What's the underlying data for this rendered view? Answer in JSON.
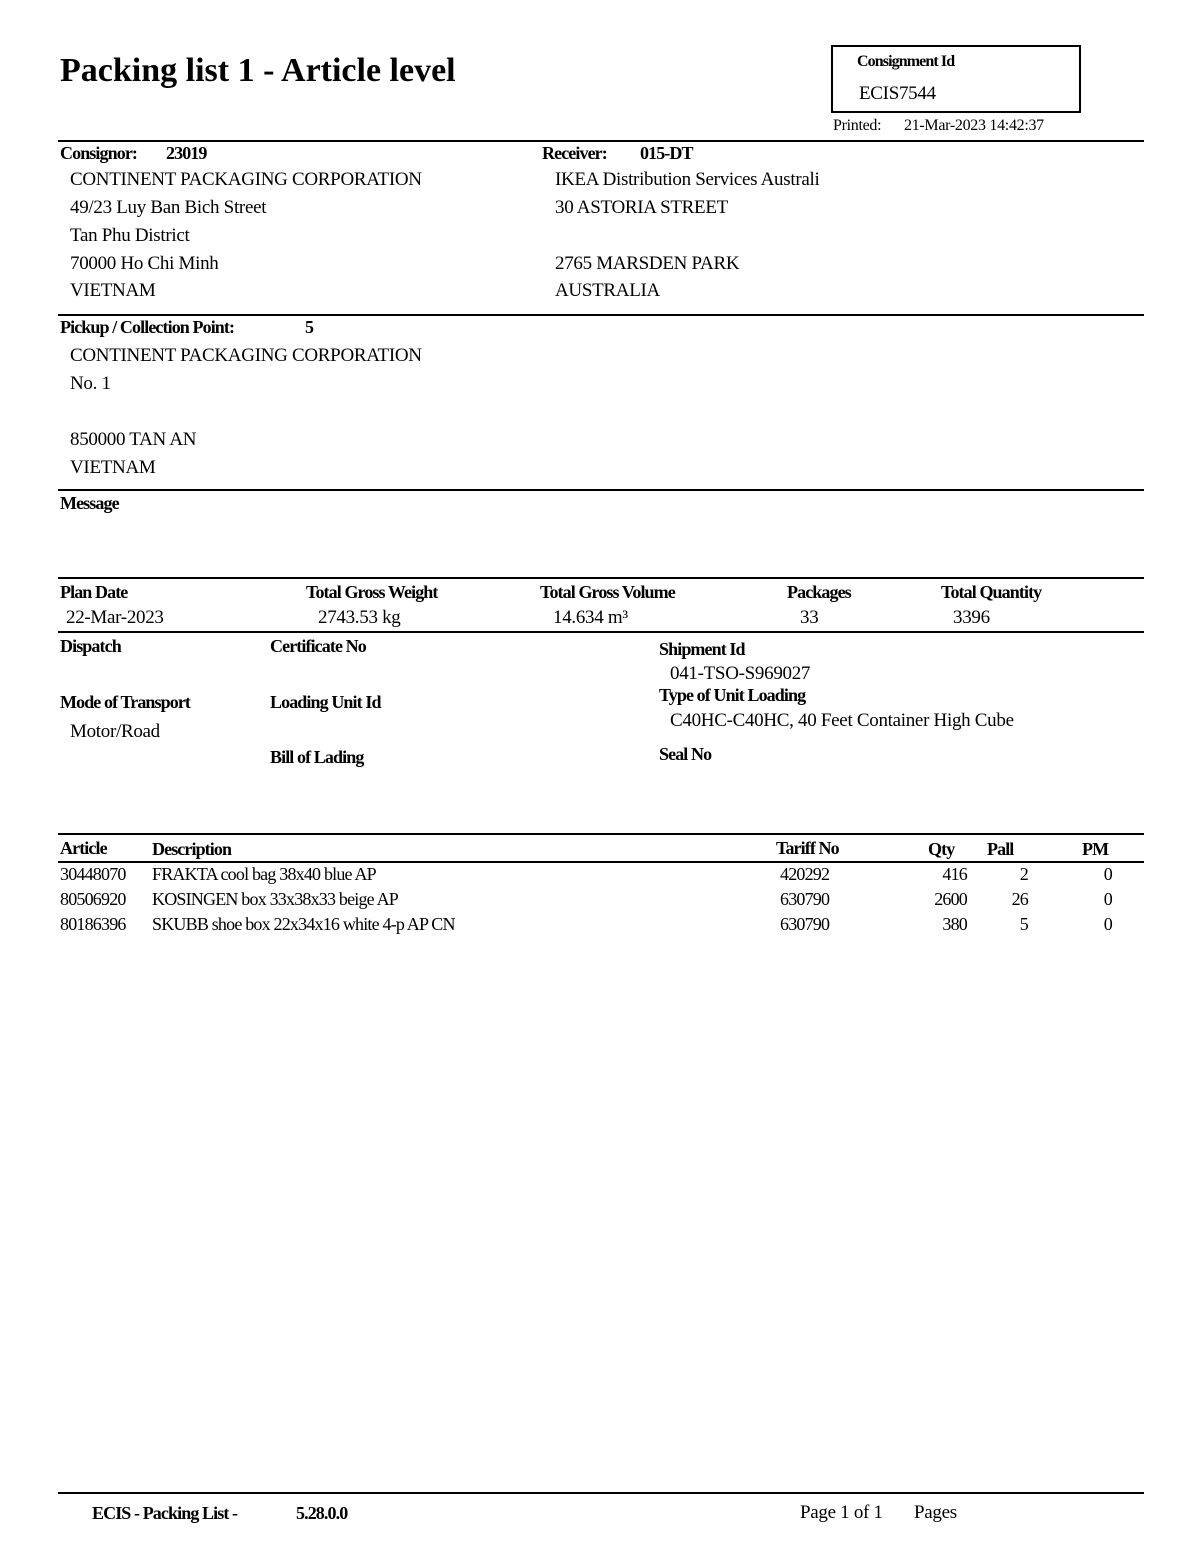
{
  "header": {
    "title": "Packing list 1 - Article level",
    "consignment_id_label": "Consignment Id",
    "consignment_id": "ECIS7544",
    "printed_label": "Printed:",
    "printed_value": "21-Mar-2023 14:42:37"
  },
  "consignor": {
    "label": "Consignor:",
    "code": "23019",
    "lines": [
      "CONTINENT PACKAGING CORPORATION",
      "49/23 Luy Ban Bich Street",
      "Tan Phu District",
      "70000 Ho Chi Minh",
      "VIETNAM"
    ]
  },
  "receiver": {
    "label": "Receiver:",
    "code": "015-DT",
    "lines": [
      "IKEA Distribution Services Australi",
      "30 ASTORIA STREET",
      "",
      "2765 MARSDEN PARK",
      "AUSTRALIA"
    ]
  },
  "pickup": {
    "label": "Pickup / Collection Point:",
    "code": "5",
    "lines": [
      "CONTINENT PACKAGING CORPORATION",
      "No. 1",
      "",
      "850000 TAN AN",
      "VIETNAM"
    ]
  },
  "message": {
    "label": "Message"
  },
  "totals": [
    {
      "label": "Plan Date",
      "value": "22-Mar-2023"
    },
    {
      "label": "Total Gross Weight",
      "value": "2743.53 kg"
    },
    {
      "label": "Total Gross Volume",
      "value": "14.634 m³"
    },
    {
      "label": "Packages",
      "value": "33"
    },
    {
      "label": "Total Quantity",
      "value": "3396"
    }
  ],
  "shipment": {
    "dispatch_label": "Dispatch",
    "certificate_label": "Certificate No",
    "shipment_id_label": "Shipment Id",
    "shipment_id": "041-TSO-S969027",
    "mode_label": "Mode of Transport",
    "mode": "Motor/Road",
    "loading_unit_label": "Loading Unit Id",
    "unit_loading_label": "Type of Unit Loading",
    "unit_loading": "C40HC-C40HC, 40 Feet Container High Cube",
    "bill_label": "Bill of Lading",
    "seal_label": "Seal No"
  },
  "table": {
    "headers": {
      "article": "Article",
      "description": "Description",
      "tariff": "Tariff No",
      "qty": "Qty",
      "pall": "Pall",
      "pm": "PM"
    },
    "rows": [
      {
        "article": "30448070",
        "description": "FRAKTA cool bag 38x40 blue AP",
        "tariff": "420292",
        "qty": "416",
        "pall": "2",
        "pm": "0"
      },
      {
        "article": "80506920",
        "description": "KOSINGEN box 33x38x33 beige AP",
        "tariff": "630790",
        "qty": "2600",
        "pall": "26",
        "pm": "0"
      },
      {
        "article": "80186396",
        "description": "SKUBB shoe box 22x34x16 white 4-p AP CN",
        "tariff": "630790",
        "qty": "380",
        "pall": "5",
        "pm": "0"
      }
    ]
  },
  "footer": {
    "app": "ECIS - Packing List -",
    "version": "5.28.0.0",
    "page": "Page 1 of 1",
    "pages_label": "Pages"
  }
}
